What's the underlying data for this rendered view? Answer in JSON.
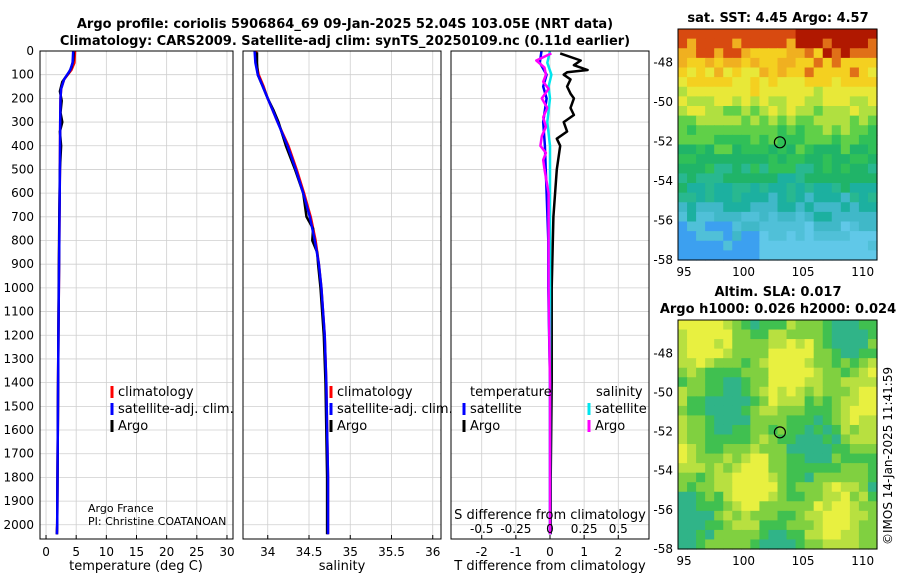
{
  "figure": {
    "title_line1": "Argo profile: coriolis 5906864_69 09-Jan-2025 52.04S 103.05E (NRT data)",
    "title_line2": "Climatology: CARS2009. Satellite-adj clim: synTS_20250109.nc (0.11d earlier)",
    "credit_org": "Argo France",
    "credit_pi": "PI: Christine COATANOAN",
    "watermark": "©IMOS 14-Jan-2025 11:41:59"
  },
  "colors": {
    "climatology": "#ff0000",
    "satellite": "#0000ff",
    "argo": "#000000",
    "sal_satellite": "#00e5ee",
    "sal_argo": "#ff00ff"
  },
  "chart_data": [
    {
      "id": "temperature",
      "type": "line",
      "xlabel": "temperature (deg C)",
      "ylabel": "",
      "xlim": [
        -1,
        31
      ],
      "ylim": [
        2060,
        0
      ],
      "xticks": [
        0,
        5,
        10,
        15,
        20,
        25,
        30
      ],
      "yticks": [
        0,
        100,
        200,
        300,
        400,
        500,
        600,
        700,
        800,
        900,
        1000,
        1100,
        1200,
        1300,
        1400,
        1500,
        1600,
        1700,
        1800,
        1900,
        2000
      ],
      "legend": [
        "climatology",
        "satellite-adj. clim.",
        "Argo"
      ],
      "series": [
        {
          "name": "climatology",
          "depth": [
            0,
            50,
            80,
            120,
            160,
            200,
            300,
            500,
            800,
            1200,
            1600,
            2000,
            2040
          ],
          "values": [
            4.8,
            4.7,
            4.2,
            3.0,
            2.5,
            2.4,
            2.35,
            2.3,
            2.2,
            2.05,
            1.95,
            1.85,
            1.8
          ]
        },
        {
          "name": "satellite-adj. clim.",
          "depth": [
            0,
            50,
            80,
            120,
            160,
            200,
            300,
            500,
            800,
            1200,
            1600,
            2000,
            2040
          ],
          "values": [
            4.5,
            4.4,
            4.0,
            3.0,
            2.5,
            2.4,
            2.35,
            2.3,
            2.2,
            2.05,
            1.95,
            1.85,
            1.8
          ]
        },
        {
          "name": "Argo",
          "depth": [
            5,
            40,
            70,
            90,
            130,
            170,
            210,
            260,
            300,
            340,
            400,
            500,
            700,
            1000,
            1400,
            1800,
            2000,
            2040
          ],
          "values": [
            4.6,
            4.5,
            4.2,
            3.8,
            2.7,
            2.3,
            2.6,
            2.4,
            2.7,
            2.3,
            2.5,
            2.3,
            2.2,
            2.1,
            2.0,
            1.9,
            1.85,
            1.8
          ]
        }
      ]
    },
    {
      "id": "salinity",
      "type": "line",
      "xlabel": "salinity",
      "ylabel": "",
      "xlim": [
        33.7,
        36.1
      ],
      "ylim": [
        2060,
        0
      ],
      "xticks": [
        34,
        34.5,
        35,
        35.5,
        36
      ],
      "legend": [
        "climatology",
        "satellite-adj. clim.",
        "Argo"
      ],
      "series": [
        {
          "name": "climatology",
          "depth": [
            0,
            50,
            100,
            150,
            200,
            250,
            300,
            400,
            500,
            600,
            700,
            800,
            900,
            1000,
            1200,
            1400,
            1600,
            1800,
            2000,
            2040
          ],
          "values": [
            33.86,
            33.86,
            33.89,
            33.95,
            34.0,
            34.06,
            34.12,
            34.25,
            34.35,
            34.44,
            34.52,
            34.58,
            34.62,
            34.65,
            34.69,
            34.71,
            34.72,
            34.73,
            34.73,
            34.73
          ]
        },
        {
          "name": "satellite-adj. clim.",
          "depth": [
            0,
            50,
            100,
            150,
            200,
            250,
            300,
            400,
            500,
            600,
            700,
            800,
            900,
            1000,
            1200,
            1400,
            1600,
            1800,
            2000,
            2040
          ],
          "values": [
            33.84,
            33.85,
            33.88,
            33.94,
            34.0,
            34.06,
            34.12,
            34.24,
            34.34,
            34.43,
            34.51,
            34.57,
            34.62,
            34.65,
            34.69,
            34.71,
            34.72,
            34.73,
            34.73,
            34.73
          ]
        },
        {
          "name": "Argo",
          "depth": [
            5,
            50,
            100,
            150,
            200,
            250,
            300,
            400,
            500,
            600,
            700,
            750,
            800,
            850,
            900,
            1000,
            1200,
            1400,
            1600,
            1800,
            2000,
            2040
          ],
          "values": [
            33.87,
            33.87,
            33.88,
            33.94,
            34.0,
            34.07,
            34.13,
            34.22,
            34.33,
            34.43,
            34.47,
            34.55,
            34.54,
            34.6,
            34.61,
            34.64,
            34.68,
            34.7,
            34.71,
            34.72,
            34.72,
            34.72
          ]
        }
      ]
    },
    {
      "id": "difference",
      "type": "line",
      "xlabel": "T difference from climatology",
      "x2label": "S difference from climatology",
      "xlim": [
        -2.9,
        2.9
      ],
      "ylim": [
        2060,
        0
      ],
      "xticks": [
        -2,
        -1,
        0,
        1,
        2
      ],
      "x2ticks": [
        -0.5,
        -0.25,
        0,
        0.25,
        0.5
      ],
      "x2lim": [
        -0.725,
        0.725
      ],
      "legend_left_title": "temperature",
      "legend_right_title": "salinity",
      "legend_left": [
        "satellite",
        "Argo"
      ],
      "legend_right": [
        "satellite",
        "Argo"
      ],
      "series": [
        {
          "name": "T satellite",
          "depth": [
            0,
            50,
            100,
            150,
            200,
            300,
            400,
            600,
            800,
            1000,
            1400,
            2000,
            2040
          ],
          "values": [
            -0.25,
            -0.3,
            -0.1,
            -0.2,
            -0.1,
            -0.2,
            -0.15,
            -0.1,
            -0.05,
            -0.05,
            0,
            0,
            0
          ]
        },
        {
          "name": "T Argo",
          "depth": [
            10,
            40,
            60,
            80,
            90,
            100,
            120,
            150,
            180,
            200,
            240,
            270,
            300,
            340,
            370,
            400,
            500,
            700,
            1000,
            1400,
            1800,
            2040
          ],
          "values": [
            0.3,
            0.9,
            0.7,
            1.1,
            0.5,
            0.4,
            0.6,
            0.5,
            0.6,
            0.7,
            0.6,
            0.7,
            0.4,
            0.5,
            0.2,
            0.3,
            0.2,
            0.1,
            0.05,
            0.05,
            0.02,
            0.02
          ]
        },
        {
          "name": "S satellite",
          "depth": [
            0,
            50,
            100,
            150,
            200,
            300,
            400,
            500,
            700,
            1000,
            1400,
            2000,
            2040
          ],
          "values": [
            0,
            -0.02,
            0.01,
            -0.01,
            0.0,
            -0.02,
            0.0,
            0.0,
            0.0,
            0.0,
            0.0,
            0.0,
            0.0
          ]
        },
        {
          "name": "S Argo",
          "depth": [
            10,
            40,
            70,
            100,
            130,
            160,
            200,
            240,
            280,
            320,
            360,
            400,
            430,
            460,
            500,
            600,
            800,
            1000,
            1400,
            2000,
            2040
          ],
          "values": [
            0.01,
            -0.1,
            -0.04,
            -0.03,
            -0.05,
            -0.01,
            -0.06,
            -0.02,
            -0.05,
            -0.03,
            -0.06,
            -0.07,
            -0.03,
            -0.05,
            -0.04,
            -0.01,
            -0.01,
            -0.01,
            0.0,
            0.0,
            0.0
          ]
        }
      ]
    },
    {
      "id": "sst_map",
      "type": "heatmap",
      "title": "sat. SST: 4.45 Argo: 4.57",
      "xticks": [
        95,
        100,
        105,
        110
      ],
      "yticks": [
        -48,
        -50,
        -52,
        -54,
        -56,
        -58
      ],
      "xlim": [
        94.5,
        111.2
      ],
      "ylim": [
        -58,
        -46.3
      ],
      "marker_lon": 103.05,
      "marker_lat": -52.04
    },
    {
      "id": "sla_map",
      "type": "heatmap",
      "title_line1": "Altim. SLA: 0.017",
      "title_line2": "Argo h1000: 0.026 h2000: 0.024",
      "xticks": [
        95,
        100,
        105,
        110
      ],
      "yticks": [
        -48,
        -50,
        -52,
        -54,
        -56,
        -58
      ],
      "xlim": [
        94.5,
        111.2
      ],
      "ylim": [
        -58,
        -46.3
      ],
      "marker_lon": 103.05,
      "marker_lat": -52.04
    }
  ]
}
